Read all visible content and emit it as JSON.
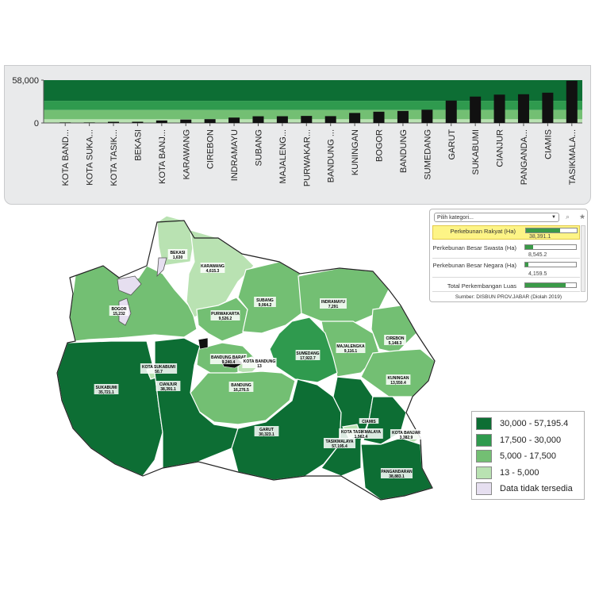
{
  "chart_data": {
    "type": "bar",
    "categories": [
      "KOTA BAND...",
      "KOTA SUKA...",
      "KOTA TASIK...",
      "BEKASI",
      "KOTA BANJ...",
      "KARAWANG",
      "CIREBON",
      "INDRAMAYU",
      "SUBANG",
      "MAJALENG...",
      "PURWAKAR...",
      "BANDUNG ...",
      "KUNINGAN",
      "BOGOR",
      "BANDUNG",
      "SUMEDANG",
      "GARUT",
      "SUKABUMI",
      "CIANJUR",
      "PANGANDA...",
      "CIAMIS",
      "TASIKMALA..."
    ],
    "values": [
      13,
      50.7,
      1562.4,
      1630,
      3382.9,
      4615.3,
      5148.3,
      7291,
      9064.2,
      9116.1,
      9526.2,
      9240.4,
      13550.4,
      15232,
      16276.5,
      17922.7,
      30323.1,
      35721.1,
      38391.1,
      38883.1,
      41000,
      57195.4
    ],
    "ylim": [
      0,
      58000
    ],
    "ytick_labels": [
      "58,000",
      "0"
    ],
    "bands": [
      {
        "from": 30000,
        "to": 58000,
        "color": "#0d6e34"
      },
      {
        "from": 17500,
        "to": 30000,
        "color": "#2f9a4e"
      },
      {
        "from": 5000,
        "to": 17500,
        "color": "#73bf73"
      },
      {
        "from": 0,
        "to": 5000,
        "color": "#b9e2b2"
      }
    ],
    "legend": [
      {
        "label": "30,000 - 57,195.4",
        "color": "#0d6e34"
      },
      {
        "label": "17,500 - 30,000",
        "color": "#2f9a4e"
      },
      {
        "label": "5,000 - 17,500",
        "color": "#73bf73"
      },
      {
        "label": "13 - 5,000",
        "color": "#b9e2b2"
      },
      {
        "label": "Data tidak tersedia",
        "color": "#e6dff0"
      }
    ]
  },
  "map": {
    "regions": [
      {
        "name": "BEKASI",
        "value": "1,630",
        "color": "#b9e2b2"
      },
      {
        "name": "KARAWANG",
        "value": "4,615.3",
        "color": "#b9e2b2"
      },
      {
        "name": "BOGOR",
        "value": "15,232",
        "color": "#73bf73"
      },
      {
        "name": "SUBANG",
        "value": "9,064.2",
        "color": "#73bf73"
      },
      {
        "name": "INDRAMAYU",
        "value": "7,291",
        "color": "#73bf73"
      },
      {
        "name": "PURWAKARTA",
        "value": "9,526.2",
        "color": "#73bf73"
      },
      {
        "name": "CIREBON",
        "value": "5,148.3",
        "color": "#73bf73"
      },
      {
        "name": "SUMEDANG",
        "value": "17,922.7",
        "color": "#2f9a4e"
      },
      {
        "name": "MAJALENGKA",
        "value": "9,116.1",
        "color": "#73bf73"
      },
      {
        "name": "KOTA SUKABUMI",
        "value": "50.7",
        "color": "#b9e2b2"
      },
      {
        "name": "BANDUNG BARAT",
        "value": "9,240.4",
        "color": "#73bf73"
      },
      {
        "name": "KOTA BANDUNG",
        "value": "13",
        "color": "#b9e2b2"
      },
      {
        "name": "KUNINGAN",
        "value": "13,550.4",
        "color": "#73bf73"
      },
      {
        "name": "SUKABUMI",
        "value": "35,721.1",
        "color": "#0d6e34"
      },
      {
        "name": "CIANJUR",
        "value": "38,391.1",
        "color": "#0d6e34"
      },
      {
        "name": "BANDUNG",
        "value": "16,276.5",
        "color": "#73bf73"
      },
      {
        "name": "CIAMIS",
        "value": "",
        "color": "#0d6e34"
      },
      {
        "name": "KOTA TASIKMALAYA",
        "value": "1,562.4",
        "color": "#b9e2b2"
      },
      {
        "name": "KOTA BANJAR",
        "value": "3,382.9",
        "color": "#b9e2b2"
      },
      {
        "name": "GARUT",
        "value": "30,323.1",
        "color": "#0d6e34"
      },
      {
        "name": "TASIKMALAYA",
        "value": "57,195.4",
        "color": "#0d6e34"
      },
      {
        "name": "PANGANDARAN",
        "value": "38,883.1",
        "color": "#0d6e34"
      }
    ]
  },
  "selector": {
    "placeholder": "Pilih kategori...",
    "items": [
      {
        "name": "Perkebunan Rakyat (Ha)",
        "value": "38,391.1",
        "fill": 0.67,
        "selected": true
      },
      {
        "name": "Perkebunan Besar Swasta (Ha)",
        "value": "8,545.2",
        "fill": 0.15,
        "selected": false
      },
      {
        "name": "Perkebunan Besar Negara (Ha)",
        "value": "4,159.5",
        "fill": 0.07,
        "selected": false
      },
      {
        "name": "Total Perkembangan Luas",
        "value": "",
        "fill": 0.8,
        "selected": false
      }
    ],
    "source": "Sumber: DISBUN PROV.JABAR (Diolah 2019)"
  }
}
